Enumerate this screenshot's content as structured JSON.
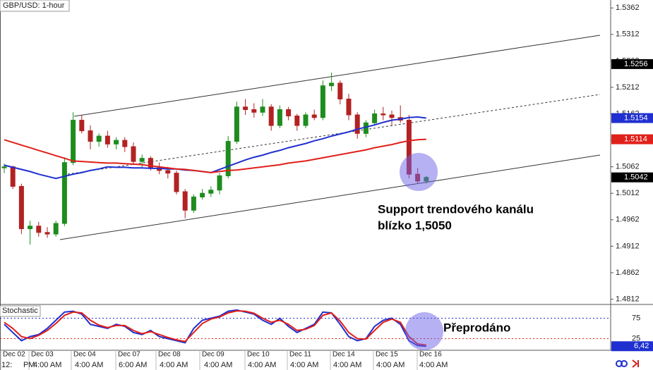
{
  "chart_data": [
    {
      "type": "candlestick",
      "title": "GBP/USD: 1-hour",
      "ohlc": [
        [
          1.506,
          1.5068,
          1.505,
          1.5062
        ],
        [
          1.5062,
          1.5064,
          1.502,
          1.5025
        ],
        [
          1.5025,
          1.503,
          1.4935,
          1.4945
        ],
        [
          1.4945,
          1.496,
          1.4915,
          1.495
        ],
        [
          1.495,
          1.4958,
          1.493,
          1.4938
        ],
        [
          1.4938,
          1.4948,
          1.4928,
          1.4935
        ],
        [
          1.4935,
          1.496,
          1.493,
          1.4955
        ],
        [
          1.4955,
          1.508,
          1.495,
          1.507
        ],
        [
          1.507,
          1.5165,
          1.5065,
          1.515
        ],
        [
          1.515,
          1.516,
          1.5125,
          1.513
        ],
        [
          1.513,
          1.514,
          1.5095,
          1.511
        ],
        [
          1.511,
          1.5125,
          1.51,
          1.512
        ],
        [
          1.512,
          1.513,
          1.5098,
          1.5105
        ],
        [
          1.5105,
          1.5118,
          1.5095,
          1.5112
        ],
        [
          1.5112,
          1.5118,
          1.509,
          1.51
        ],
        [
          1.51,
          1.5108,
          1.5065,
          1.5072
        ],
        [
          1.5072,
          1.5085,
          1.506,
          1.5078
        ],
        [
          1.5078,
          1.5082,
          1.5055,
          1.506
        ],
        [
          1.506,
          1.507,
          1.5048,
          1.5055
        ],
        [
          1.5055,
          1.5062,
          1.504,
          1.505
        ],
        [
          1.505,
          1.5055,
          1.501,
          1.5015
        ],
        [
          1.5015,
          1.502,
          1.4965,
          1.498
        ],
        [
          1.498,
          1.501,
          1.4975,
          1.5005
        ],
        [
          1.5005,
          1.502,
          1.5,
          1.5012
        ],
        [
          1.5012,
          1.5025,
          1.5005,
          1.5018
        ],
        [
          1.5018,
          1.505,
          1.501,
          1.5045
        ],
        [
          1.5045,
          1.512,
          1.504,
          1.511
        ],
        [
          1.511,
          1.5185,
          1.5105,
          1.5175
        ],
        [
          1.5175,
          1.519,
          1.516,
          1.517
        ],
        [
          1.517,
          1.5182,
          1.5155,
          1.5165
        ],
        [
          1.5165,
          1.519,
          1.5158,
          1.5175
        ],
        [
          1.5175,
          1.518,
          1.513,
          1.514
        ],
        [
          1.514,
          1.5178,
          1.5135,
          1.517
        ],
        [
          1.517,
          1.5175,
          1.515,
          1.5158
        ],
        [
          1.5158,
          1.5162,
          1.513,
          1.514
        ],
        [
          1.514,
          1.5165,
          1.5135,
          1.516
        ],
        [
          1.516,
          1.517,
          1.515,
          1.5155
        ],
        [
          1.5155,
          1.5225,
          1.515,
          1.5215
        ],
        [
          1.5215,
          1.524,
          1.5205,
          1.522
        ],
        [
          1.522,
          1.5225,
          1.518,
          1.519
        ],
        [
          1.519,
          1.52,
          1.515,
          1.516
        ],
        [
          1.516,
          1.5165,
          1.5115,
          1.5125
        ],
        [
          1.5125,
          1.515,
          1.5118,
          1.5145
        ],
        [
          1.5145,
          1.517,
          1.514,
          1.5162
        ],
        [
          1.5162,
          1.5175,
          1.515,
          1.516
        ],
        [
          1.516,
          1.5168,
          1.514,
          1.5155
        ],
        [
          1.5155,
          1.5178,
          1.5145,
          1.515
        ],
        [
          1.515,
          1.516,
          1.504,
          1.5048
        ],
        [
          1.5048,
          1.506,
          1.503,
          1.5035
        ],
        [
          1.5035,
          1.5045,
          1.503,
          1.5042
        ]
      ],
      "up_color": "#1e8c1e",
      "down_color": "#b22222",
      "lines": [
        {
          "color": "#1f2fd0",
          "values": [
            1.5065,
            1.5061,
            1.5057,
            1.5053,
            1.5048,
            1.5044,
            1.504,
            1.5044,
            1.5048,
            1.5051,
            1.5055,
            1.5058,
            1.5062,
            1.5061,
            1.5061,
            1.506,
            1.506,
            1.5059,
            1.5059,
            1.5058,
            1.5058,
            1.5056,
            1.5055,
            1.5053,
            1.5051,
            1.5057,
            1.5063,
            1.5069,
            1.5075,
            1.508,
            1.5084,
            1.5089,
            1.5093,
            1.5098,
            1.5102,
            1.5106,
            1.5111,
            1.5115,
            1.512,
            1.5124,
            1.5128,
            1.5133,
            1.5137,
            1.5141,
            1.5146,
            1.515,
            1.5152,
            1.5155,
            1.5156,
            1.5154
          ]
        },
        {
          "color": "#e0201a",
          "values": [
            1.5113,
            1.5108,
            1.5103,
            1.5098,
            1.5093,
            1.5088,
            1.5083,
            1.5078,
            1.5073,
            1.5072,
            1.5071,
            1.507,
            1.5069,
            1.5069,
            1.5068,
            1.5067,
            1.5066,
            1.5064,
            1.5062,
            1.506,
            1.5058,
            1.5057,
            1.5055,
            1.5053,
            1.5051,
            1.5053,
            1.5055,
            1.5056,
            1.5058,
            1.506,
            1.5062,
            1.5064,
            1.5066,
            1.5069,
            1.5071,
            1.5073,
            1.5076,
            1.5079,
            1.5082,
            1.5085,
            1.5088,
            1.5091,
            1.5094,
            1.5098,
            1.5101,
            1.5104,
            1.5108,
            1.5111,
            1.5113,
            1.5114
          ]
        }
      ],
      "ylim": [
        1.4802,
        1.5377
      ],
      "yticks": [
        1.5362,
        1.5312,
        1.5262,
        1.5212,
        1.5162,
        1.5112,
        1.5062,
        1.5012,
        1.4962,
        1.4912,
        1.4862,
        1.4812
      ],
      "flag": 1.5256,
      "annotation": [
        "Support trendového kanálu",
        "blízko 1,5050"
      ]
    },
    {
      "type": "line",
      "title": "Stochastic",
      "lines": [
        {
          "color": "#1f2fd0",
          "values": [
            60,
            40,
            20,
            30,
            35,
            50,
            70,
            90,
            92,
            85,
            60,
            55,
            50,
            60,
            55,
            40,
            35,
            45,
            30,
            25,
            20,
            15,
            50,
            70,
            75,
            80,
            92,
            95,
            90,
            85,
            70,
            60,
            75,
            55,
            40,
            50,
            60,
            90,
            88,
            60,
            30,
            20,
            25,
            55,
            70,
            75,
            60,
            20,
            8,
            6.42
          ]
        },
        {
          "color": "#e0201a",
          "values": [
            65,
            50,
            30,
            25,
            33,
            45,
            62,
            82,
            90,
            88,
            70,
            58,
            52,
            57,
            57,
            45,
            37,
            42,
            35,
            28,
            22,
            18,
            40,
            62,
            73,
            78,
            88,
            93,
            92,
            87,
            75,
            65,
            70,
            60,
            45,
            48,
            57,
            82,
            88,
            68,
            40,
            25,
            24,
            45,
            65,
            73,
            65,
            30,
            12,
            9
          ]
        }
      ],
      "ylim": [
        0,
        100
      ],
      "yticks": [
        75,
        25
      ],
      "current": {
        "value": 6.42,
        "label": "6,42"
      },
      "annotation": "Přeprodáno"
    }
  ],
  "x_axis": {
    "dates": [
      "Dec 02",
      "Dec 03",
      "Dec 04",
      "Dec 07",
      "Dec 08",
      "Dec 09",
      "Dec 10",
      "Dec 11",
      "Dec 14",
      "Dec 15",
      "Dec 16"
    ],
    "times": [
      "12:",
      "PM",
      "4:00 AM",
      "4:00 AM",
      "6:00 AM",
      "4:00 AM",
      "4:00 AM",
      "4:00 AM",
      "4:00 AM",
      "4:00 AM",
      "4:00 AM",
      "4:00 AM"
    ]
  }
}
